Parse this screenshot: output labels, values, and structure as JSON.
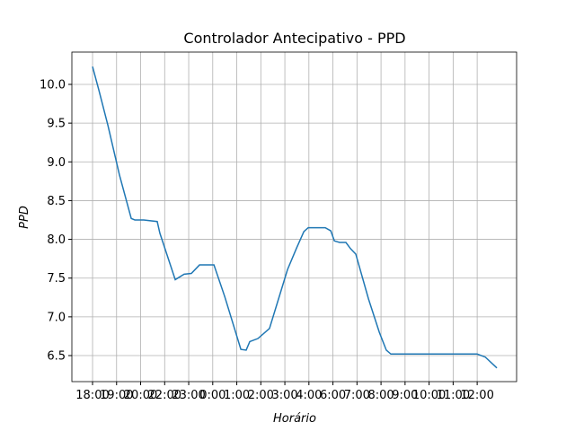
{
  "chart_data": {
    "type": "line",
    "title": "Controlador Antecipativo - PPD",
    "xlabel": "Horário",
    "ylabel": "PPD",
    "x": [
      0,
      0.26,
      0.64,
      1.12,
      1.61,
      1.76,
      2.13,
      2.69,
      2.8,
      3.44,
      3.81,
      4.11,
      4.45,
      5.05,
      5.5,
      6.17,
      6.39,
      6.54,
      6.88,
      7.36,
      8.11,
      8.49,
      8.79,
      8.97,
      9.68,
      9.91,
      10.06,
      10.28,
      10.54,
      10.73,
      10.95,
      11.48,
      11.93,
      12.22,
      12.41,
      16.0,
      16.34,
      16.82
    ],
    "series": [
      {
        "name": "PPD",
        "color": "#1f77b4",
        "values": [
          10.23,
          9.93,
          9.47,
          8.83,
          8.27,
          8.25,
          8.25,
          8.23,
          8.08,
          7.48,
          7.55,
          7.56,
          7.67,
          7.67,
          7.26,
          6.58,
          6.57,
          6.68,
          6.72,
          6.85,
          7.61,
          7.89,
          8.1,
          8.15,
          8.15,
          8.11,
          7.98,
          7.96,
          7.96,
          7.88,
          7.81,
          7.23,
          6.8,
          6.57,
          6.52,
          6.52,
          6.48,
          6.34
        ]
      }
    ],
    "xlim": [
      -0.86,
      17.64
    ],
    "ylim": [
      6.164,
      10.417
    ],
    "xticks": [
      {
        "value": 0,
        "label": "18:00"
      },
      {
        "value": 1,
        "label": "19:00"
      },
      {
        "value": 2,
        "label": "20:00"
      },
      {
        "value": 3,
        "label": "22:00"
      },
      {
        "value": 4,
        "label": "23:00"
      },
      {
        "value": 5,
        "label": "0:00"
      },
      {
        "value": 6,
        "label": "1:00"
      },
      {
        "value": 7,
        "label": "2:00"
      },
      {
        "value": 8,
        "label": "3:00"
      },
      {
        "value": 9,
        "label": "4:00"
      },
      {
        "value": 10,
        "label": "6:00"
      },
      {
        "value": 11,
        "label": "7:00"
      },
      {
        "value": 12,
        "label": "8:00"
      },
      {
        "value": 13,
        "label": "9:00"
      },
      {
        "value": 14,
        "label": "10:00"
      },
      {
        "value": 15,
        "label": "11:00"
      },
      {
        "value": 16,
        "label": "12:00"
      }
    ],
    "yticks": [
      6.5,
      {
        "value": 7,
        "label": "7.0"
      },
      7.5,
      {
        "value": 8,
        "label": "8.0"
      },
      8.5,
      {
        "value": 9,
        "label": "9.0"
      },
      9.5,
      {
        "value": 10,
        "label": "10.0"
      }
    ],
    "grid": true
  }
}
